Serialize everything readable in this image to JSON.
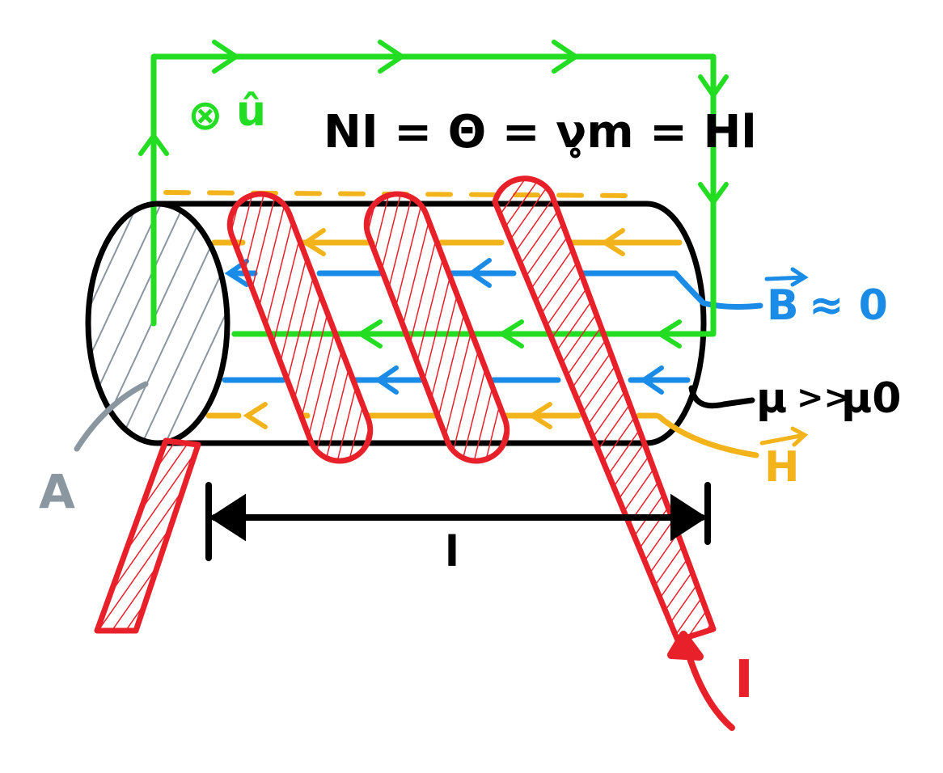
{
  "equation": "NI = Θ = ν̥m = Hl",
  "labels": {
    "unit_vector": "û",
    "into_page_symbol": "⊗",
    "area": "A",
    "length": "l",
    "current": "I",
    "b_field": "B ≈ 0",
    "b_vector": "B",
    "approx_zero": "≈ 0",
    "h_field": "H",
    "permeability": "μ >> μ0",
    "mu": "μ",
    "gtgt": ">>",
    "mu0": "μ0"
  },
  "colors": {
    "loop": "#22dd22",
    "coil": "#e8202a",
    "b_lines": "#1a8ce8",
    "h_lines": "#f2b41a",
    "core": "#000000",
    "area_fill": "#8a96a0"
  }
}
